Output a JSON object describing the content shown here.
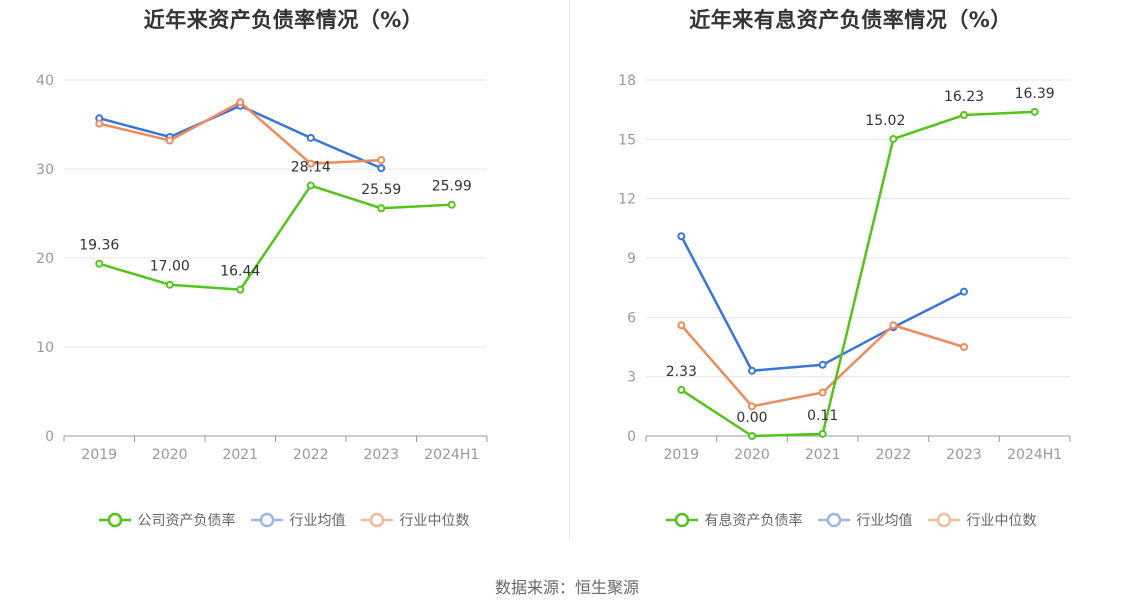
{
  "source_label": "数据来源：恒生聚源",
  "chart_data": [
    {
      "type": "line",
      "title": "近年来资产负债率情况（%）",
      "categories": [
        "2019",
        "2020",
        "2021",
        "2022",
        "2023",
        "2024H1"
      ],
      "yticks": [
        "0",
        "10",
        "20",
        "30",
        "40"
      ],
      "ylim": [
        0,
        40
      ],
      "grid": true,
      "legend_position": "bottom",
      "series": [
        {
          "name": "公司资产负债率",
          "color": "#52c41a",
          "values": [
            19.36,
            17.0,
            16.44,
            28.14,
            25.59,
            25.99
          ],
          "labels": [
            "19.36",
            "17.00",
            "16.44",
            "28.14",
            "25.59",
            "25.99"
          ]
        },
        {
          "name": "行业均值",
          "color": "#3a76d8",
          "values": [
            35.7,
            33.6,
            37.1,
            33.5,
            30.1,
            null
          ]
        },
        {
          "name": "行业中位数",
          "color": "#f08a5d",
          "values": [
            35.1,
            33.2,
            37.5,
            30.6,
            31.0,
            null
          ]
        }
      ]
    },
    {
      "type": "line",
      "title": "近年来有息资产负债率情况（%）",
      "categories": [
        "2019",
        "2020",
        "2021",
        "2022",
        "2023",
        "2024H1"
      ],
      "yticks": [
        "0",
        "3",
        "6",
        "9",
        "12",
        "15",
        "18"
      ],
      "ylim": [
        0,
        18
      ],
      "grid": true,
      "legend_position": "bottom",
      "series": [
        {
          "name": "有息资产负债率",
          "color": "#52c41a",
          "values": [
            2.33,
            0.0,
            0.11,
            15.02,
            16.23,
            16.39
          ],
          "labels": [
            "2.33",
            "0.00",
            "0.11",
            "15.02",
            "16.23",
            "16.39"
          ]
        },
        {
          "name": "行业均值",
          "color": "#3a76d8",
          "values": [
            10.1,
            3.3,
            3.6,
            5.5,
            7.3,
            null
          ]
        },
        {
          "name": "行业中位数",
          "color": "#f08a5d",
          "values": [
            5.6,
            1.5,
            2.2,
            5.6,
            4.5,
            null
          ]
        }
      ]
    }
  ]
}
